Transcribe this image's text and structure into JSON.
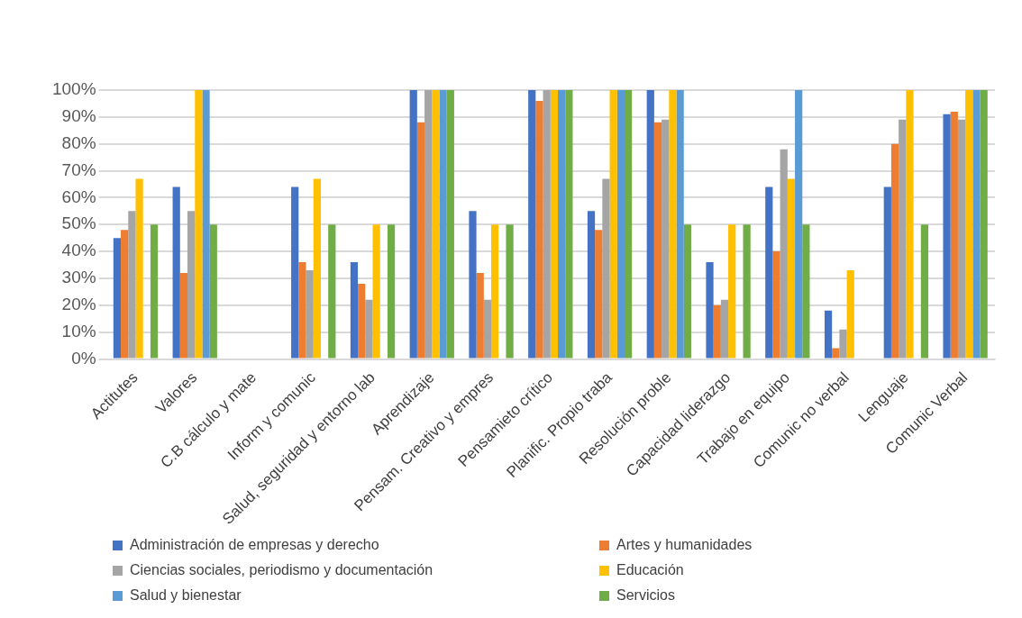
{
  "chart_data": {
    "type": "bar",
    "categories": [
      "Actitutes",
      "Valores",
      "C.B cálculo y mate",
      "Inform y comunic",
      "Salud, seguridad y entorno lab",
      "Aprendizaje",
      "Pensam. Creativo y empres",
      "Pensamieto crítico",
      "Planific. Propio traba",
      "Resolución proble",
      "Capacidad liderazgo",
      "Trabajo en equipo",
      "Comunic no verbal",
      "Lenguaje",
      "Comunic Verbal"
    ],
    "series": [
      {
        "name": "Administración de empresas y derecho",
        "color": "#4472c4",
        "values": [
          45,
          64,
          null,
          64,
          36,
          100,
          55,
          100,
          55,
          100,
          36,
          64,
          18,
          64,
          91
        ]
      },
      {
        "name": "Artes y humanidades",
        "color": "#ed7d31",
        "values": [
          48,
          32,
          null,
          36,
          28,
          88,
          32,
          96,
          48,
          88,
          20,
          40,
          4,
          80,
          92
        ]
      },
      {
        "name": "Ciencias sociales, periodismo y documentación",
        "color": "#a5a5a5",
        "values": [
          55,
          55,
          null,
          33,
          22,
          100,
          22,
          100,
          67,
          89,
          22,
          78,
          11,
          89,
          89
        ]
      },
      {
        "name": "Educación",
        "color": "#ffc000",
        "values": [
          67,
          100,
          null,
          67,
          50,
          100,
          50,
          100,
          100,
          100,
          50,
          67,
          33,
          100,
          100
        ]
      },
      {
        "name": "Salud y bienestar",
        "color": "#5b9bd5",
        "values": [
          null,
          100,
          null,
          null,
          null,
          100,
          null,
          100,
          100,
          100,
          null,
          100,
          null,
          null,
          100
        ]
      },
      {
        "name": "Servicios",
        "color": "#70ad47",
        "values": [
          50,
          50,
          null,
          50,
          50,
          100,
          50,
          100,
          100,
          50,
          50,
          50,
          null,
          50,
          100
        ]
      }
    ],
    "ylim": [
      0,
      100
    ],
    "yticks": [
      {
        "value": 0,
        "label": "0%"
      },
      {
        "value": 10,
        "label": "10%"
      },
      {
        "value": 20,
        "label": "20%"
      },
      {
        "value": 30,
        "label": "30%"
      },
      {
        "value": 40,
        "label": "40%"
      },
      {
        "value": 50,
        "label": "50%"
      },
      {
        "value": 60,
        "label": "60%"
      },
      {
        "value": 70,
        "label": "70%"
      },
      {
        "value": 80,
        "label": "80%"
      },
      {
        "value": 90,
        "label": "90%"
      },
      {
        "value": 100,
        "label": "100%"
      }
    ],
    "grid": "y",
    "legend": "bottom"
  }
}
